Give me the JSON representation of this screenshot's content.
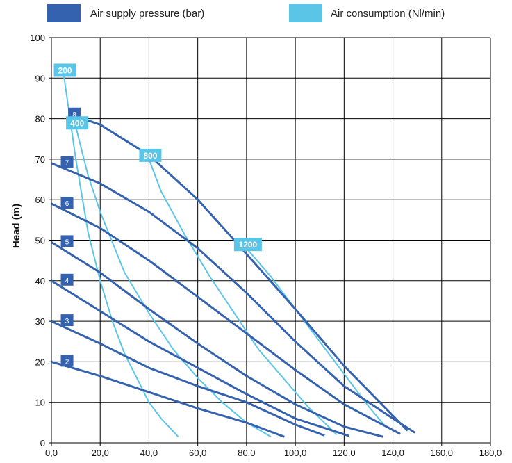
{
  "colors": {
    "pressure": "#3462ae",
    "consumption": "#5bc5e8",
    "grid": "#000000",
    "label_text": "#ffffff"
  },
  "legend": [
    {
      "label": "Air supply pressure (bar)",
      "color": "#3462ae"
    },
    {
      "label": "Air consumption (Nl/min)",
      "color": "#5bc5e8"
    }
  ],
  "chart_data": {
    "type": "line",
    "xlabel": "",
    "ylabel": "Head (m)",
    "xlim": [
      0,
      180
    ],
    "ylim": [
      0,
      100
    ],
    "xticks": [
      "0,0",
      "20,0",
      "40,0",
      "60,0",
      "80,0",
      "100,0",
      "120,0",
      "140,0",
      "160,0",
      "180,0"
    ],
    "yticks": [
      "0",
      "10",
      "20",
      "30",
      "40",
      "50",
      "60",
      "70",
      "80",
      "90",
      "100"
    ],
    "grid": true,
    "legend_position": "top",
    "pressure_series": [
      {
        "label": "2",
        "points": [
          [
            0,
            20
          ],
          [
            20,
            16.5
          ],
          [
            40,
            12.5
          ],
          [
            60,
            8.5
          ],
          [
            80,
            5
          ],
          [
            95.5,
            1.5
          ]
        ]
      },
      {
        "label": "3",
        "points": [
          [
            0,
            30
          ],
          [
            20,
            24.5
          ],
          [
            40,
            18.5
          ],
          [
            60,
            14
          ],
          [
            80,
            10
          ],
          [
            100,
            4.5
          ],
          [
            112,
            1.8
          ]
        ]
      },
      {
        "label": "4",
        "points": [
          [
            0,
            40
          ],
          [
            20,
            32.5
          ],
          [
            40,
            25
          ],
          [
            60,
            18.5
          ],
          [
            80,
            12
          ],
          [
            100,
            6
          ],
          [
            122,
            1.7
          ]
        ]
      },
      {
        "label": "5",
        "points": [
          [
            0,
            49.5
          ],
          [
            20,
            42
          ],
          [
            40,
            33
          ],
          [
            60,
            24.5
          ],
          [
            80,
            16.5
          ],
          [
            100,
            9.5
          ],
          [
            120,
            4
          ],
          [
            136,
            1.5
          ]
        ]
      },
      {
        "label": "6",
        "points": [
          [
            0,
            59
          ],
          [
            20,
            53
          ],
          [
            40,
            45
          ],
          [
            60,
            36
          ],
          [
            80,
            27
          ],
          [
            100,
            18
          ],
          [
            120,
            9.5
          ],
          [
            143,
            2.2
          ]
        ]
      },
      {
        "label": "7",
        "points": [
          [
            0,
            69
          ],
          [
            20,
            64
          ],
          [
            40,
            57
          ],
          [
            60,
            48
          ],
          [
            80,
            37
          ],
          [
            100,
            25
          ],
          [
            120,
            14
          ],
          [
            140,
            6
          ],
          [
            149,
            2.5
          ]
        ]
      },
      {
        "label": "8",
        "points": [
          [
            8,
            81
          ],
          [
            20,
            78.5
          ],
          [
            40,
            71
          ],
          [
            60,
            60
          ],
          [
            75,
            50
          ],
          [
            100,
            33
          ],
          [
            120,
            19
          ],
          [
            146,
            3
          ]
        ]
      }
    ],
    "consumption_series": [
      {
        "label": "200",
        "points": [
          [
            5,
            91
          ],
          [
            10,
            70
          ],
          [
            15,
            52
          ],
          [
            20,
            40
          ],
          [
            25,
            30
          ],
          [
            30,
            22
          ],
          [
            35,
            16
          ],
          [
            40,
            10
          ],
          [
            45,
            6
          ],
          [
            52,
            1.5
          ]
        ]
      },
      {
        "label": "400",
        "points": [
          [
            10,
            78
          ],
          [
            15,
            66
          ],
          [
            20,
            57
          ],
          [
            30,
            42
          ],
          [
            40,
            32
          ],
          [
            50,
            23
          ],
          [
            60,
            16
          ],
          [
            70,
            10
          ],
          [
            80,
            5
          ],
          [
            90,
            1.5
          ]
        ]
      },
      {
        "label": "800",
        "points": [
          [
            40,
            70
          ],
          [
            45,
            62
          ],
          [
            55,
            51
          ],
          [
            65,
            41
          ],
          [
            75,
            32
          ],
          [
            85,
            23
          ],
          [
            95,
            16
          ],
          [
            105,
            9
          ],
          [
            117,
            2
          ]
        ]
      },
      {
        "label": "1200",
        "points": [
          [
            80,
            48
          ],
          [
            90,
            41
          ],
          [
            100,
            33
          ],
          [
            110,
            25
          ],
          [
            120,
            17
          ],
          [
            130,
            9
          ],
          [
            137,
            4
          ]
        ]
      }
    ]
  }
}
